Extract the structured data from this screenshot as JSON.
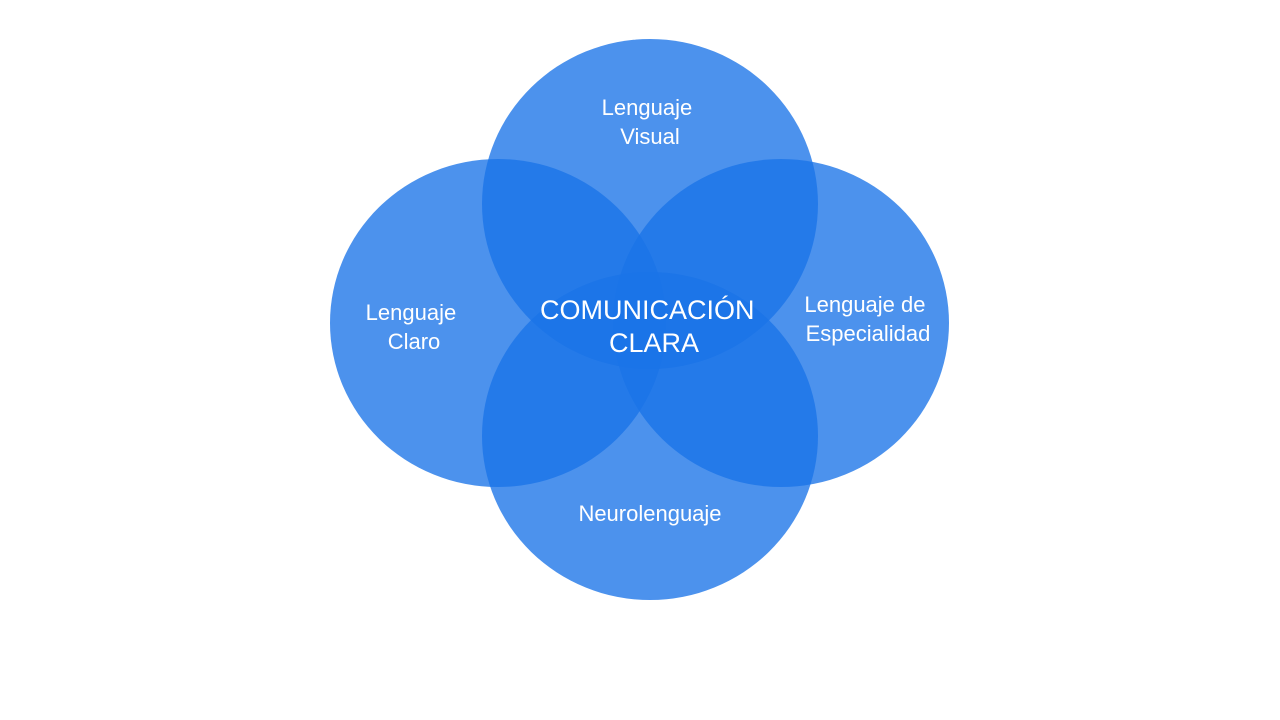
{
  "colors": {
    "background": "#ffffff",
    "circle_fill": "#1a73e8",
    "label_text": "#ffffff"
  },
  "diagram": {
    "type": "four-circle-overlap",
    "center_label": [
      "COMUNICACIÓN",
      "CLARA"
    ],
    "circles": [
      {
        "id": "top",
        "label": [
          "Lenguaje",
          "Visual"
        ]
      },
      {
        "id": "left",
        "label": [
          "Lenguaje",
          "Claro"
        ]
      },
      {
        "id": "right",
        "label": [
          "Lenguaje de",
          "Especialidad"
        ]
      },
      {
        "id": "bottom",
        "label": [
          "Neurolenguaje"
        ]
      }
    ]
  }
}
